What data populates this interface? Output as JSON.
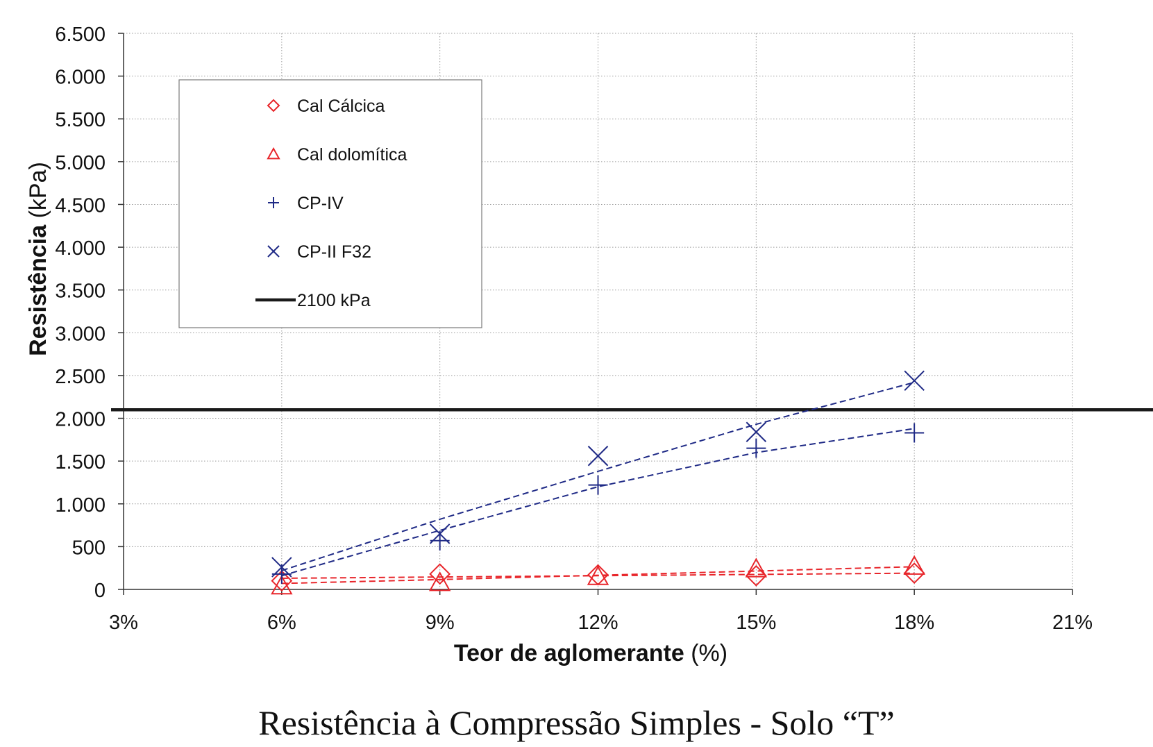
{
  "chart_data": {
    "type": "line",
    "caption": "Resistência à Compressão Simples - Solo “T”",
    "xlabel_bold": "Teor de aglomerante",
    "xlabel_unit": " (%)",
    "ylabel_bold": "Resistência",
    "ylabel_unit": " (kPa)",
    "xlim": [
      3,
      21
    ],
    "ylim": [
      0,
      6500
    ],
    "x_ticks": [
      3,
      6,
      9,
      12,
      15,
      18,
      21
    ],
    "x_tick_labels": [
      "3%",
      "6%",
      "9%",
      "12%",
      "15%",
      "18%",
      "21%"
    ],
    "y_ticks": [
      0,
      500,
      1000,
      1500,
      2000,
      2500,
      3000,
      3500,
      4000,
      4500,
      5000,
      5500,
      6000,
      6500
    ],
    "y_tick_labels": [
      "0",
      "500",
      "1.000",
      "1.500",
      "2.000",
      "2.500",
      "3.000",
      "3.500",
      "4.000",
      "4.500",
      "5.000",
      "5.500",
      "6.000",
      "6.500"
    ],
    "grid": true,
    "legend_position": "upper-left",
    "series": [
      {
        "name": "Cal Cálcica",
        "marker": "diamond",
        "color": "#e8262b",
        "x": [
          6,
          9,
          12,
          15,
          18
        ],
        "y": [
          100,
          180,
          170,
          160,
          190
        ],
        "trend": [
          130,
          145,
          160,
          175,
          190
        ]
      },
      {
        "name": "Cal dolomítica",
        "marker": "triangle",
        "color": "#e8262b",
        "x": [
          6,
          9,
          12,
          15,
          18
        ],
        "y": [
          40,
          80,
          150,
          240,
          270
        ],
        "trend": [
          70,
          115,
          165,
          215,
          265
        ]
      },
      {
        "name": "CP-IV",
        "marker": "plus",
        "color": "#1f2a86",
        "x": [
          6,
          9,
          12,
          15,
          18
        ],
        "y": [
          180,
          570,
          1220,
          1650,
          1830
        ],
        "trend": [
          160,
          690,
          1200,
          1600,
          1880
        ]
      },
      {
        "name": "CP-II F32",
        "marker": "cross",
        "color": "#1f2a86",
        "x": [
          6,
          9,
          12,
          15,
          18
        ],
        "y": [
          260,
          650,
          1560,
          1840,
          2440
        ],
        "trend": [
          220,
          820,
          1380,
          1930,
          2420
        ]
      }
    ],
    "reference_line": {
      "name": "2100 kPa",
      "y": 2100,
      "color": "#1a1a1a"
    }
  }
}
